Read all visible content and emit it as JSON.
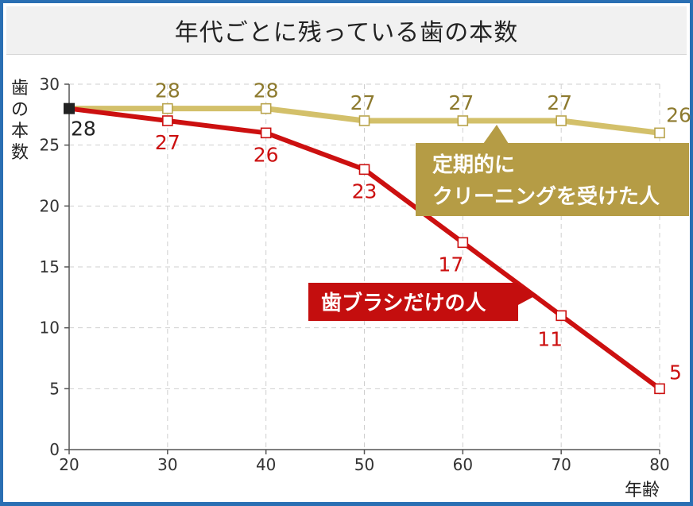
{
  "title": "年代ごとに残っている歯の本数",
  "chart_data": {
    "type": "line",
    "x": [
      20,
      30,
      40,
      50,
      60,
      70,
      80
    ],
    "xlabel": "年齢",
    "ylabel": "歯の本数",
    "ylim": [
      0,
      30
    ],
    "xlim": [
      20,
      80
    ],
    "yticks": [
      0,
      5,
      10,
      15,
      20,
      25,
      30
    ],
    "xticks": [
      20,
      30,
      40,
      50,
      60,
      70,
      80
    ],
    "grid": true,
    "series": [
      {
        "name": "定期的にクリーニングを受けた人",
        "label_lines": [
          "定期的に",
          "クリーニングを受けた人"
        ],
        "color": "#d3c06a",
        "label_bg": "#b59c45",
        "text_color": "#8d7a2e",
        "values": [
          28,
          28,
          28,
          27,
          27,
          27,
          26
        ]
      },
      {
        "name": "歯ブラシだけの人",
        "label_lines": [
          "歯ブラシだけの人"
        ],
        "color": "#cc1010",
        "label_bg": "#c40e0e",
        "text_color": "#cc1010",
        "values": [
          28,
          27,
          26,
          23,
          17,
          11,
          5
        ]
      }
    ],
    "start_point": {
      "x": 20,
      "y": 28,
      "label": "28",
      "color": "#222222"
    }
  }
}
